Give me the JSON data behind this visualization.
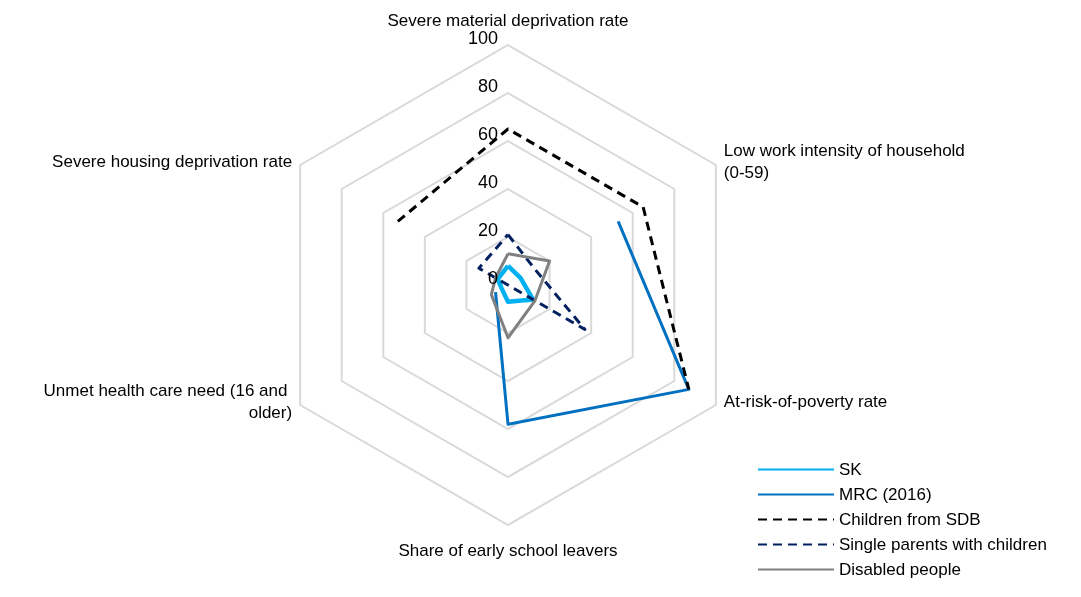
{
  "chart_data": {
    "type": "radar",
    "categories": [
      "Severe material deprivation rate",
      "Low work intensity of household (0-59)",
      "At-risk-of-poverty rate",
      "Share of early school leavers",
      "Unmet health care need (16 and older)",
      "Severe housing deprivation rate"
    ],
    "series": [
      {
        "name": "SK",
        "color": "#00b0f0",
        "line_style": "solid",
        "values": [
          8,
          6,
          12,
          7,
          3,
          5
        ]
      },
      {
        "name": "MRC (2016)",
        "color": "#0070c0",
        "line_style": "solid",
        "values": [
          null,
          53,
          87,
          58,
          6,
          null
        ]
      },
      {
        "name": "Children from SDB",
        "color": "#000000",
        "line_style": "dashed",
        "values": [
          65,
          65,
          87,
          null,
          null,
          53
        ]
      },
      {
        "name": "Single parents with children",
        "color": "#002060",
        "line_style": "dashed",
        "values": [
          21,
          13,
          37,
          0,
          0,
          14
        ]
      },
      {
        "name": "Disabled people",
        "color": "#808080",
        "line_style": "solid",
        "values": [
          13,
          20,
          13,
          22,
          8,
          6
        ]
      }
    ],
    "ylim": [
      0,
      100
    ],
    "yticks": [
      0,
      20,
      40,
      60,
      80,
      100
    ],
    "grid": true,
    "legend": "bottom right",
    "marker": "none"
  }
}
